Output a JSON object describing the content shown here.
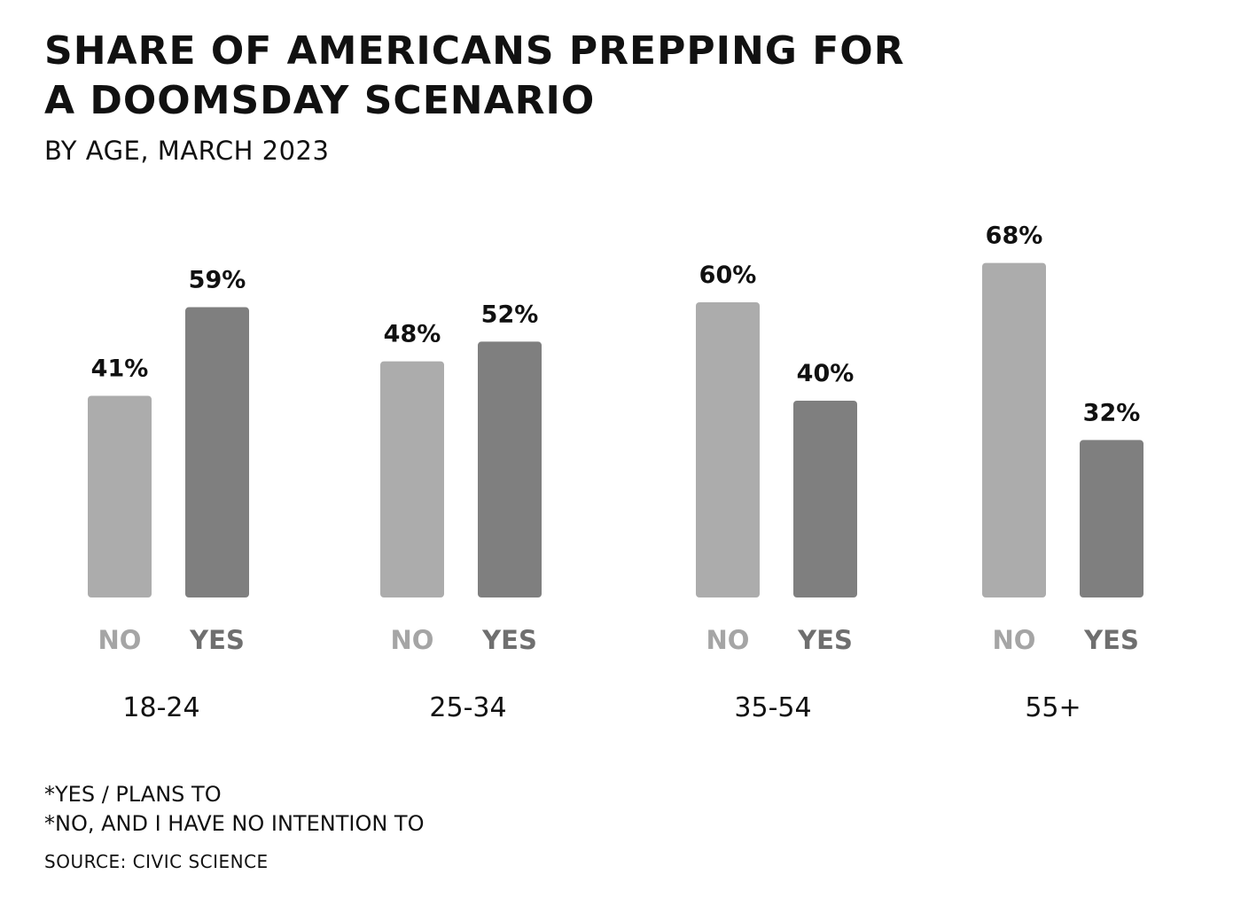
{
  "colors": {
    "no": "#acacac",
    "yes": "#7f7f7f",
    "text": "#111111",
    "no_label": "#a5a5a5",
    "yes_label": "#6f6f6f"
  },
  "footnotes": [
    "*YES / PLANS TO",
    "*NO, AND I HAVE NO INTENTION TO"
  ],
  "source": "SOURCE: CIVIC SCIENCE",
  "chart_data": {
    "type": "bar",
    "title": "SHARE OF AMERICANS PREPPING FOR A DOOMSDAY SCENARIO",
    "title_lines": [
      "SHARE OF AMERICANS PREPPING FOR",
      "A DOOMSDAY SCENARIO"
    ],
    "subtitle": "BY AGE, MARCH 2023",
    "categories": [
      "18-24",
      "25-34",
      "35-54",
      "55+"
    ],
    "series": [
      {
        "name": "NO",
        "values": [
          41,
          48,
          60,
          68
        ],
        "labels": [
          "41%",
          "48%",
          "60%",
          "68%"
        ]
      },
      {
        "name": "YES",
        "values": [
          59,
          52,
          40,
          32
        ],
        "labels": [
          "59%",
          "52%",
          "40%",
          "32%"
        ]
      }
    ],
    "ylim": [
      0,
      100
    ],
    "grid": false,
    "axes_visible": false,
    "legend": "none"
  }
}
